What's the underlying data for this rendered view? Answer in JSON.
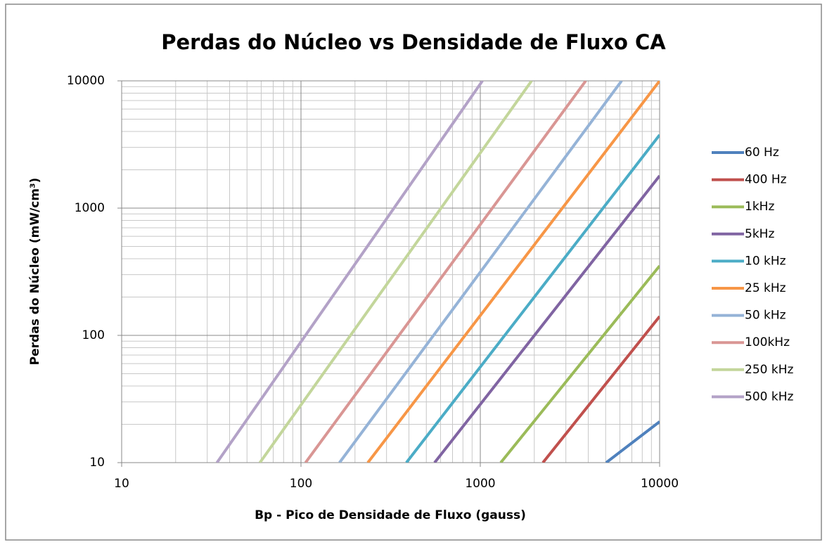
{
  "chart_data": {
    "type": "line",
    "title": "Perdas do Núcleo vs Densidade de Fluxo CA",
    "xlabel": "Bp - Pico de Densidade de Fluxo (gauss)",
    "ylabel": "Perdas do Núcleo (mW/cm³)",
    "xlim": [
      10,
      10000
    ],
    "ylim": [
      10,
      10000
    ],
    "xticks": [
      10,
      100,
      1000,
      10000
    ],
    "yticks": [
      10,
      100,
      1000,
      10000
    ],
    "xscale": "log",
    "yscale": "log",
    "grid": true,
    "minor_grid": true,
    "legend": "right",
    "series": [
      {
        "name": "60 Hz",
        "color": "#4f81bd",
        "x": [
          5035,
          10000
        ],
        "values": [
          10,
          21
        ]
      },
      {
        "name": "400 Hz",
        "color": "#c0504d",
        "x": [
          2234,
          10000
        ],
        "values": [
          10,
          141
        ]
      },
      {
        "name": "1kHz",
        "color": "#9bbb59",
        "x": [
          1300,
          10000
        ],
        "values": [
          10,
          352
        ]
      },
      {
        "name": "5kHz",
        "color": "#8064a2",
        "x": [
          556,
          10000
        ],
        "values": [
          10,
          1795
        ]
      },
      {
        "name": "10 kHz",
        "color": "#4bacc6",
        "x": [
          387,
          10000
        ],
        "values": [
          10,
          3760
        ]
      },
      {
        "name": "25 kHz",
        "color": "#f79646",
        "x": [
          236,
          10000
        ],
        "values": [
          10,
          10000
        ]
      },
      {
        "name": "50 kHz",
        "color": "#95b3d7",
        "x": [
          164,
          6137
        ],
        "values": [
          10,
          10000
        ]
      },
      {
        "name": "100kHz",
        "color": "#d99694",
        "x": [
          106,
          3873
        ],
        "values": [
          10,
          10000
        ]
      },
      {
        "name": "250 kHz",
        "color": "#c3d69b",
        "x": [
          59,
          1932
        ],
        "values": [
          10,
          10000
        ]
      },
      {
        "name": "500 kHz",
        "color": "#b3a2c7",
        "x": [
          34,
          1028
        ],
        "values": [
          10,
          10000
        ]
      }
    ]
  }
}
